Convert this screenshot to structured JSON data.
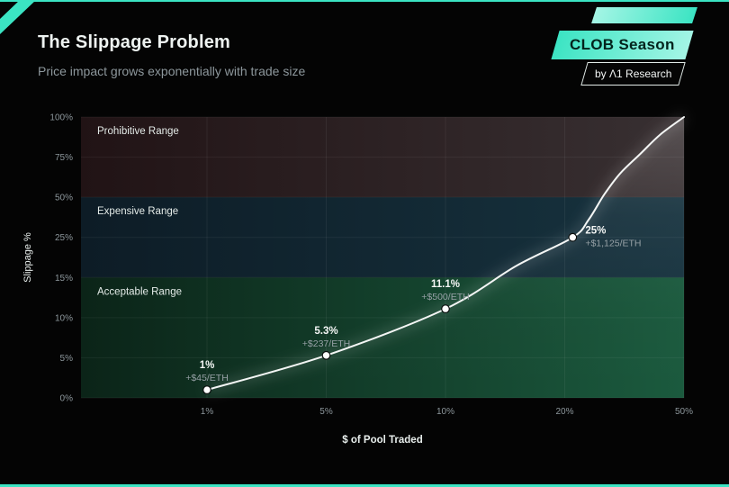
{
  "colors": {
    "background": "#040404",
    "accent_teal": "#3be4c3",
    "accent_teal_light": "#a4f5e5",
    "text_primary": "#eef3f1",
    "text_muted": "#8d979c",
    "curve": "#f4f6f5"
  },
  "header": {
    "title": "The Slippage Problem",
    "subtitle": "Price impact grows exponentially with trade size"
  },
  "brand": {
    "badge": "CLOB Season",
    "byline": "by Λ1 Research"
  },
  "chart_data": {
    "type": "line",
    "title": "The Slippage Problem",
    "xlabel": "$ of Pool Traded",
    "ylabel": "Slippage %",
    "x_axis": {
      "unit": "percent of pool traded",
      "ticks": [
        {
          "value": 1,
          "label": "1%"
        },
        {
          "value": 5,
          "label": "5%"
        },
        {
          "value": 10,
          "label": "10%"
        },
        {
          "value": 20,
          "label": "20%"
        },
        {
          "value": 50,
          "label": "50%"
        }
      ]
    },
    "y_axis": {
      "unit": "percent slippage",
      "ticks": [
        {
          "value": 0,
          "label": "0%"
        },
        {
          "value": 5,
          "label": "5%"
        },
        {
          "value": 10,
          "label": "10%"
        },
        {
          "value": 15,
          "label": "15%"
        },
        {
          "value": 25,
          "label": "25%"
        },
        {
          "value": 50,
          "label": "50%"
        },
        {
          "value": 75,
          "label": "75%"
        },
        {
          "value": 100,
          "label": "100%"
        }
      ]
    },
    "bands": [
      {
        "label": "Prohibitive Range",
        "from": 50,
        "to": 100,
        "color_from": "#211315",
        "color_to": "#383032"
      },
      {
        "label": "Expensive Range",
        "from": 15,
        "to": 50,
        "color_from": "#0d1c26",
        "color_to": "#17333f"
      },
      {
        "label": "Acceptable Range",
        "from": 0,
        "to": 15,
        "color_from": "#0b2418",
        "color_to": "#1b5a3e"
      }
    ],
    "points": [
      {
        "pool_traded_pct": 1,
        "slippage_pct": 1,
        "label": "1%",
        "sublabel": "+$45/ETH",
        "label_position": "above"
      },
      {
        "pool_traded_pct": 5,
        "slippage_pct": 5.3,
        "label": "5.3%",
        "sublabel": "+$237/ETH",
        "label_position": "above"
      },
      {
        "pool_traded_pct": 10,
        "slippage_pct": 11.1,
        "label": "11.1%",
        "sublabel": "+$500/ETH",
        "label_position": "above"
      },
      {
        "pool_traded_pct": 22,
        "slippage_pct": 25,
        "label": "25%",
        "sublabel": "+$1,125/ETH",
        "label_position": "right"
      }
    ],
    "curve_samples": [
      [
        1,
        1
      ],
      [
        5,
        5.3
      ],
      [
        10,
        11.1
      ],
      [
        16,
        18
      ],
      [
        22,
        25
      ],
      [
        26,
        36
      ],
      [
        30,
        52
      ],
      [
        34,
        65
      ],
      [
        39,
        77
      ],
      [
        44,
        89
      ],
      [
        50,
        100
      ]
    ]
  }
}
